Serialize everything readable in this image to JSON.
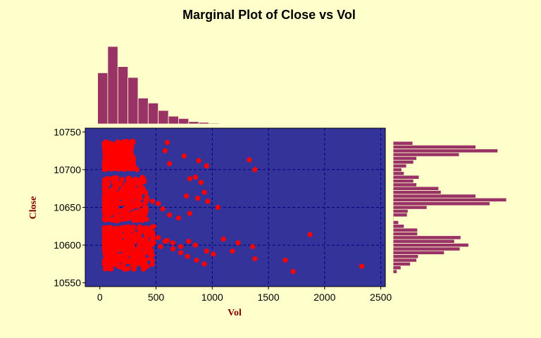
{
  "chart_data": {
    "type": "scatter",
    "title": "Marginal Plot of Close vs Vol",
    "xlabel": "Vol",
    "ylabel": "Close",
    "xlim": [
      -130,
      2540
    ],
    "ylim": [
      10545,
      10755
    ],
    "x_ticks": [
      "0",
      "500",
      "1000",
      "1500",
      "2000",
      "2500"
    ],
    "y_ticks": [
      "10550",
      "10600",
      "10650",
      "10700",
      "10750"
    ],
    "grid": true,
    "colors": {
      "background": "#ffffcc",
      "plot_area": "#333399",
      "points": "#ff0000",
      "bars": "#993366",
      "grid": "#000080"
    },
    "series": [
      {
        "x": [
          40,
          60,
          80,
          100,
          120,
          140,
          160,
          180,
          200,
          220,
          240,
          260,
          280,
          300,
          60,
          90,
          130,
          170,
          210,
          250,
          290,
          330,
          70,
          110,
          150,
          190,
          230,
          270,
          310,
          600,
          580,
          750,
          620,
          880,
          1330,
          1380,
          950,
          850,
          800,
          900,
          60,
          100,
          140,
          180,
          220,
          260,
          300,
          340,
          80,
          120,
          160,
          200,
          240,
          280,
          320,
          360,
          420,
          470,
          520,
          560,
          620,
          700,
          800,
          1050,
          960,
          870,
          770,
          930,
          40,
          70,
          100,
          130,
          160,
          190,
          220,
          250,
          280,
          310,
          340,
          380,
          430,
          480,
          540,
          600,
          650,
          720,
          790,
          850,
          950,
          1100,
          1230,
          1360,
          1870,
          60,
          100,
          140,
          180,
          220,
          260,
          300,
          340,
          380,
          420,
          80,
          120,
          160,
          200,
          240,
          280,
          320,
          360,
          400,
          460,
          520,
          580,
          650,
          720,
          780,
          860,
          930,
          1010,
          1180,
          1380,
          1650,
          1720,
          2330
        ],
        "y": [
          10735,
          10735,
          10733,
          10731,
          10729,
          10726,
          10724,
          10722,
          10728,
          10725,
          10721,
          10718,
          10716,
          10713,
          10718,
          10715,
          10712,
          10710,
          10708,
          10705,
          10702,
          10700,
          10724,
          10720,
          10716,
          10712,
          10709,
          10706,
          10703,
          10736,
          10725,
          10718,
          10708,
          10712,
          10713,
          10700,
          10705,
          10690,
          10688,
          10683,
          10670,
          10668,
          10665,
          10663,
          10660,
          10657,
          10655,
          10652,
          10650,
          10648,
          10646,
          10644,
          10642,
          10640,
          10638,
          10662,
          10660,
          10658,
          10655,
          10648,
          10640,
          10636,
          10642,
          10650,
          10658,
          10662,
          10665,
          10670,
          10605,
          10603,
          10601,
          10599,
          10597,
          10595,
          10593,
          10591,
          10589,
          10587,
          10585,
          10583,
          10598,
          10603,
          10598,
          10606,
          10603,
          10598,
          10605,
          10600,
          10592,
          10608,
          10603,
          10598,
          10614,
          10590,
          10588,
          10586,
          10584,
          10582,
          10580,
          10578,
          10576,
          10574,
          10572,
          10620,
          10618,
          10615,
          10612,
          10610,
          10608,
          10606,
          10604,
          10602,
          10600,
          10610,
          10605,
          10595,
          10590,
          10585,
          10580,
          10575,
          10588,
          10592,
          10582,
          10580,
          10565,
          10572
        ],
        "density_bands": [
          {
            "x": [
              40,
              300
            ],
            "y": [
              10700,
              10738
            ],
            "n": 260
          },
          {
            "x": [
              40,
              420
            ],
            "y": [
              10632,
              10690
            ],
            "n": 300
          },
          {
            "x": [
              40,
              480
            ],
            "y": [
              10568,
              10625
            ],
            "n": 340
          }
        ]
      }
    ],
    "marginal_x": {
      "bin_edges": [
        -20,
        70,
        160,
        250,
        340,
        430,
        520,
        610,
        700,
        790,
        880,
        970,
        1060,
        1150,
        1240
      ],
      "counts": [
        330,
        500,
        370,
        300,
        167,
        135,
        87,
        50,
        35,
        15,
        10,
        5,
        3,
        2
      ]
    },
    "marginal_y": {
      "bin_centers": [
        10565,
        10570,
        10575,
        10580,
        10585,
        10590,
        10595,
        10600,
        10605,
        10610,
        10615,
        10620,
        10625,
        10630,
        10635,
        10640,
        10645,
        10650,
        10655,
        10660,
        10665,
        10670,
        10675,
        10680,
        10685,
        10690,
        10695,
        10700,
        10705,
        10710,
        10715,
        10720,
        10725,
        10730,
        10735
      ],
      "counts": [
        5,
        10,
        22,
        30,
        32,
        65,
        85,
        96,
        78,
        86,
        31,
        31,
        14,
        7,
        1,
        18,
        19,
        43,
        123,
        144,
        105,
        61,
        58,
        30,
        26,
        33,
        14,
        11,
        17,
        26,
        30,
        84,
        133,
        105,
        25
      ]
    }
  }
}
